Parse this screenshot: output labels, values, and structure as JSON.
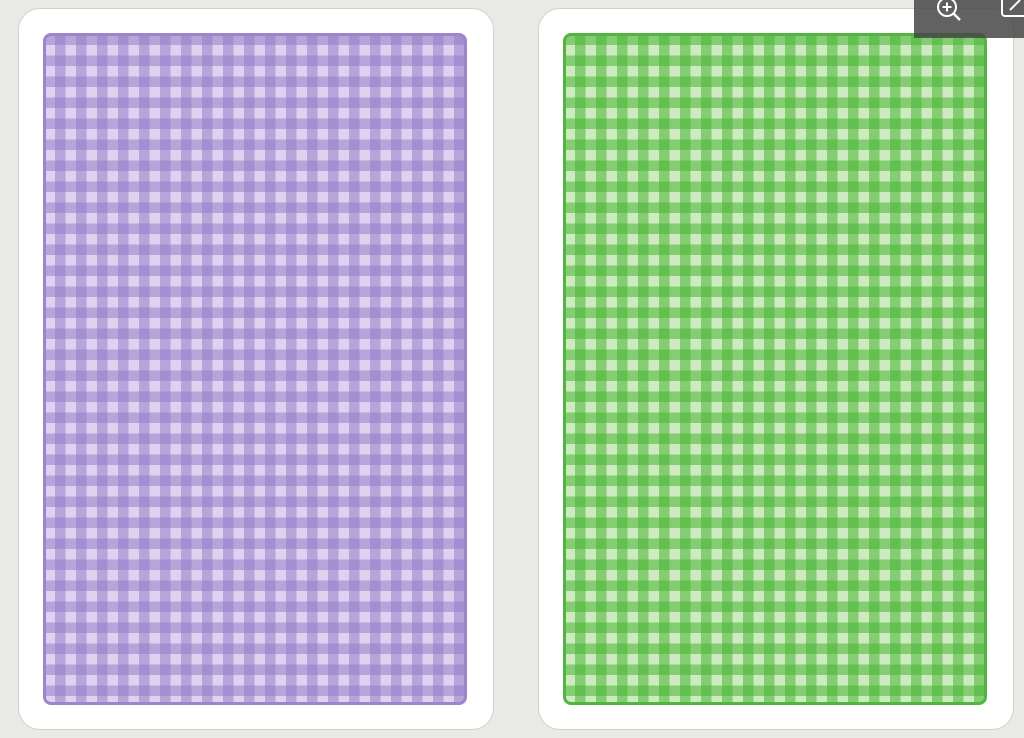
{
  "cards": [
    {
      "name": "purple-card-back",
      "color": "#9c86c9",
      "light": "#ddd2f0",
      "pattern": "gingham"
    },
    {
      "name": "green-card-back",
      "color": "#52b541",
      "light": "#cdeac0",
      "pattern": "gingham"
    }
  ],
  "toolbar": {
    "icons": [
      "zoom-in-icon",
      "edit-icon"
    ]
  }
}
